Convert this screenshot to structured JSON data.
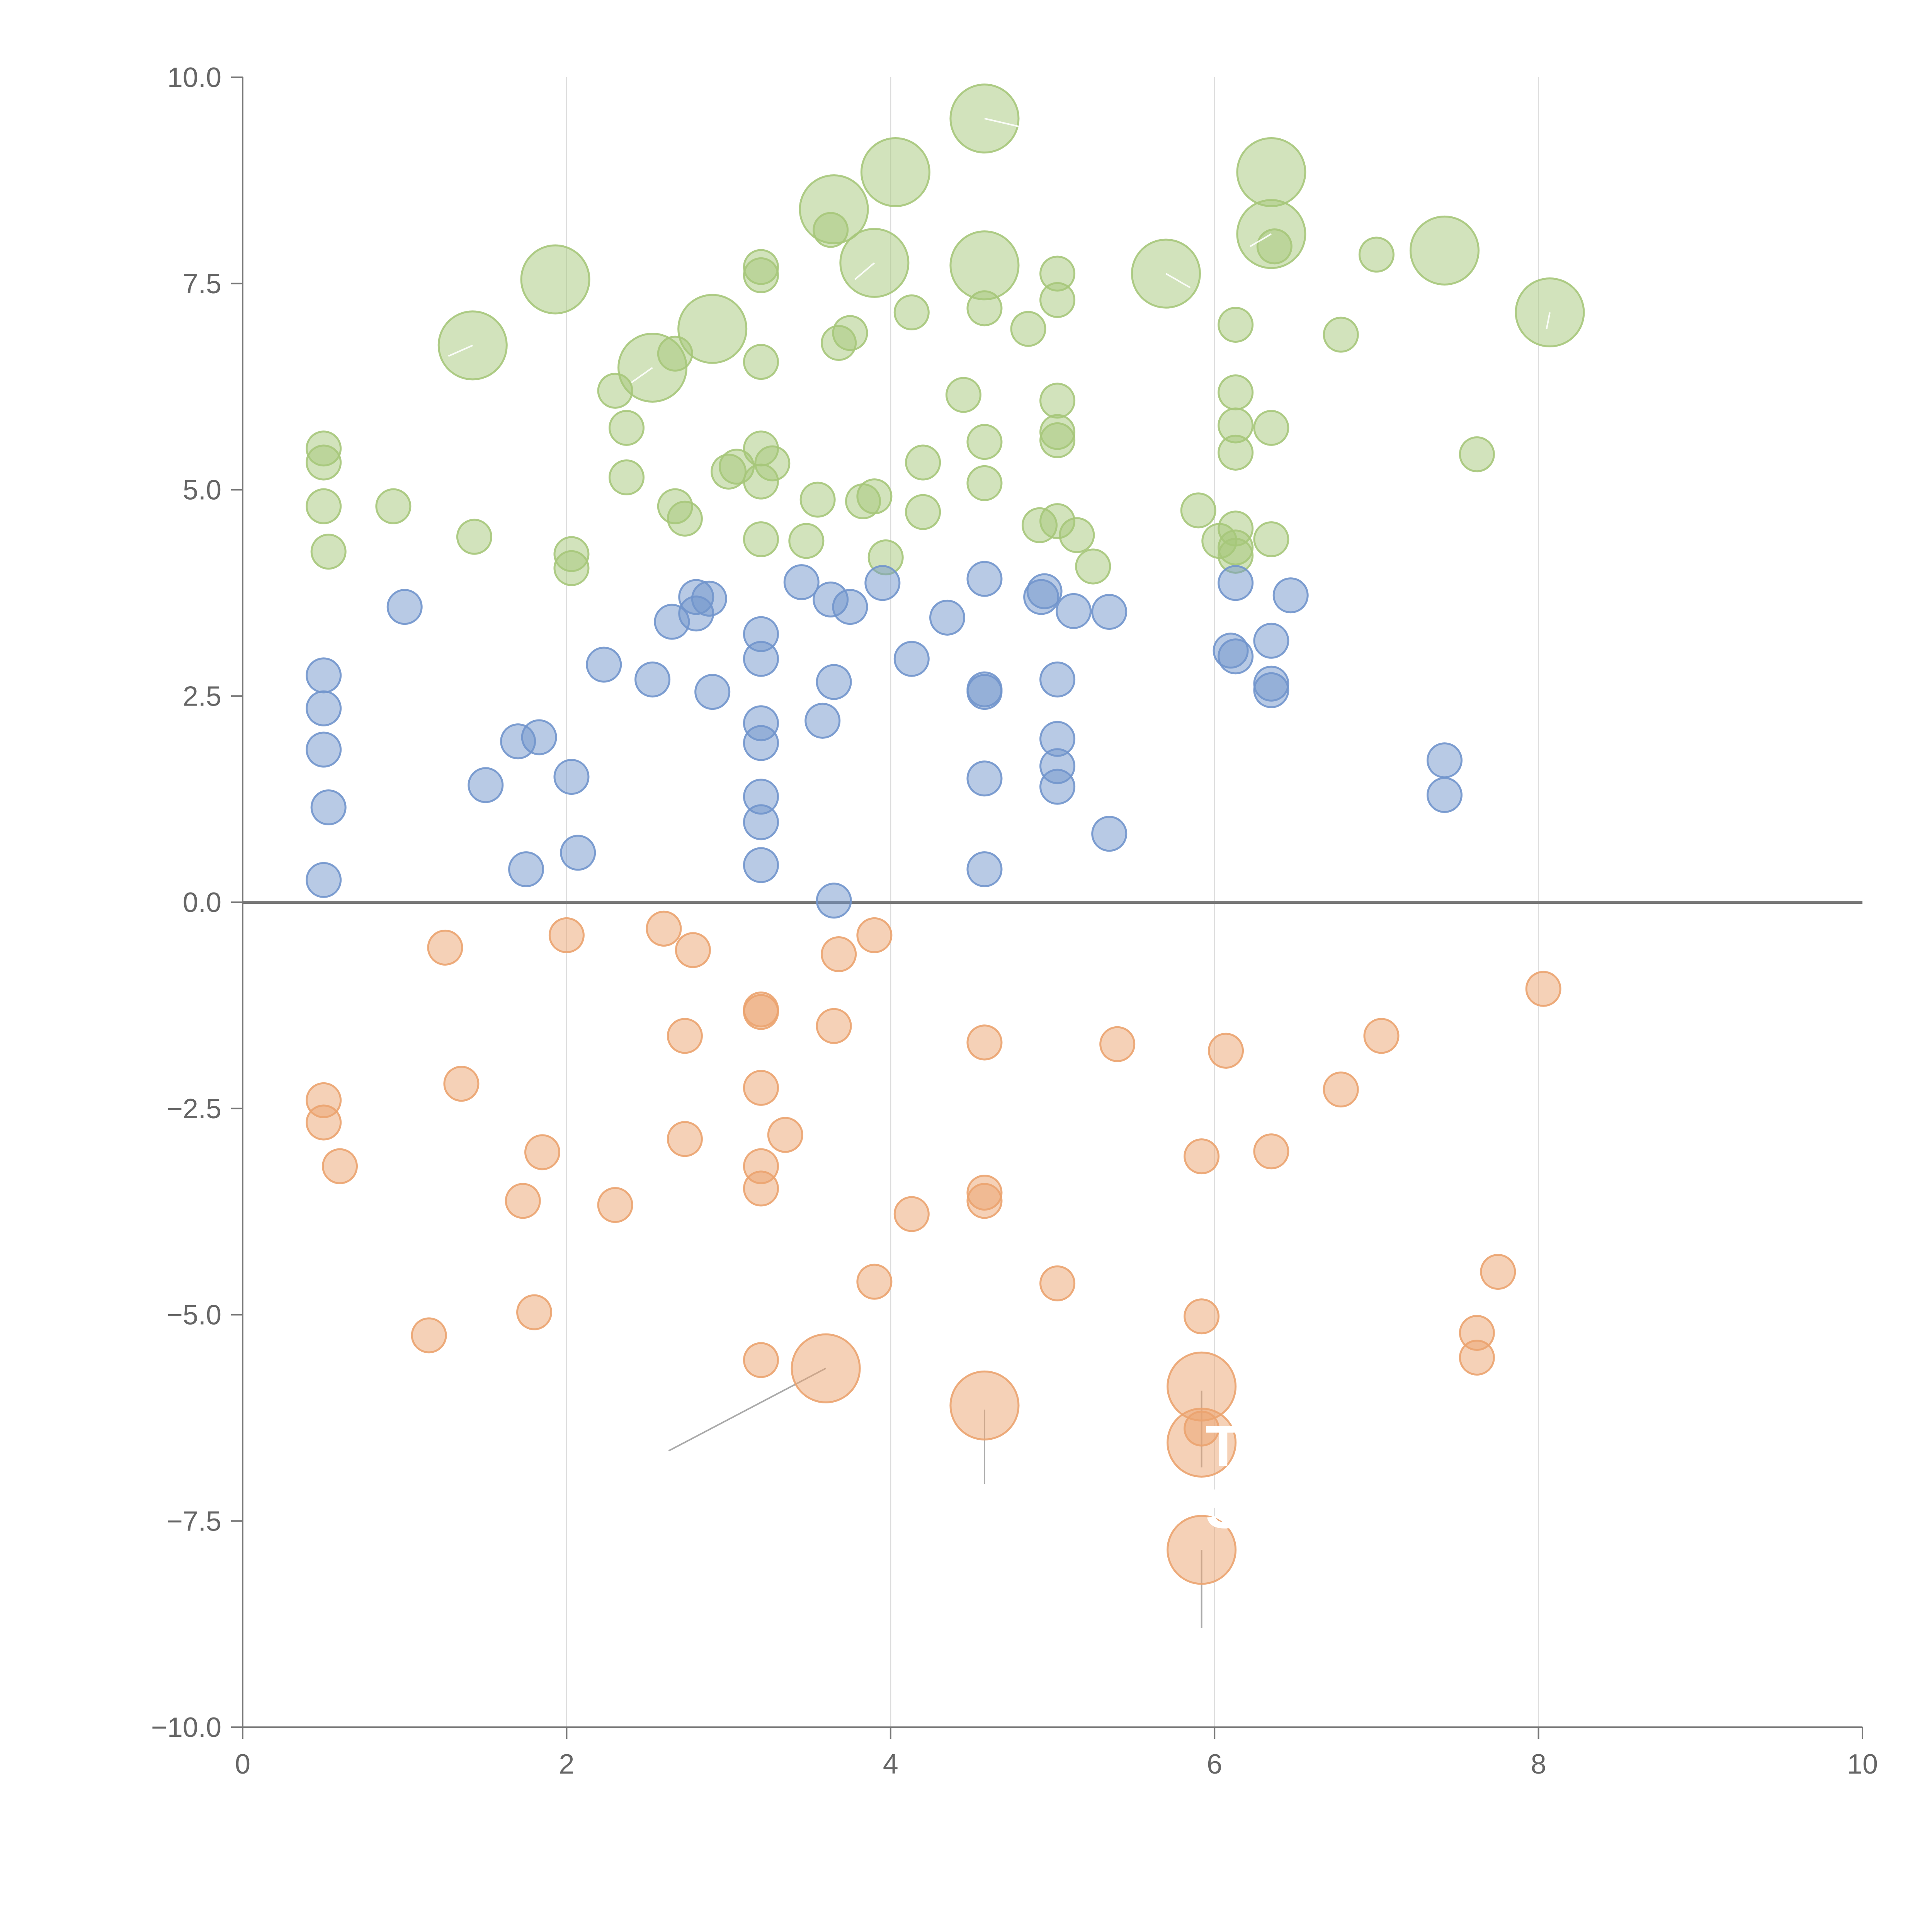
{
  "chart_data": {
    "type": "scatter",
    "title": "",
    "xlabel": "",
    "ylabel": "",
    "xlim": [
      0,
      10
    ],
    "ylim": [
      -10,
      10
    ],
    "x_ticks": [
      0,
      2,
      4,
      6,
      8,
      10
    ],
    "x_tick_labels": [
      "0",
      "2",
      "4",
      "6",
      "8",
      "10"
    ],
    "y_ticks": [
      10,
      7.5,
      5,
      2.5,
      0,
      -2.5,
      -5,
      -7.5,
      -10
    ],
    "y_tick_labels": [
      "10.0",
      "7.5",
      "5.0",
      "2.5",
      "0.0",
      "−2.5",
      "−5.0",
      "−7.5",
      "−10.0"
    ],
    "vertical_grid_at": [
      2,
      4,
      6,
      8
    ],
    "reference_line_y": 0,
    "colors": {
      "green": "#a6c77a",
      "blue": "#7195cc",
      "orange": "#eba36f",
      "axis": "#777777",
      "grid": "#dddddd",
      "tick_text": "#666666"
    },
    "series": [
      {
        "name": "green",
        "color": "#a6c77a",
        "small_radius": 0.105,
        "points": [
          [
            4.58,
            9.5,
            2
          ],
          [
            4.03,
            8.85,
            2
          ],
          [
            6.35,
            8.85,
            2
          ],
          [
            3.65,
            8.4,
            2
          ],
          [
            6.35,
            8.1,
            2
          ],
          [
            6.37,
            7.95,
            1
          ],
          [
            3.63,
            8.15,
            1
          ],
          [
            1.93,
            7.55,
            2
          ],
          [
            3.9,
            7.75,
            2
          ],
          [
            4.58,
            7.72,
            2
          ],
          [
            5.7,
            7.62,
            2
          ],
          [
            7.42,
            7.9,
            2
          ],
          [
            8.07,
            7.15,
            2
          ],
          [
            3.2,
            7.7,
            1
          ],
          [
            3.2,
            7.6,
            1
          ],
          [
            5.03,
            7.62,
            1
          ],
          [
            7.0,
            7.85,
            1
          ],
          [
            4.13,
            7.15,
            1
          ],
          [
            4.58,
            7.2,
            1
          ],
          [
            5.03,
            7.3,
            1
          ],
          [
            1.42,
            6.75,
            2
          ],
          [
            2.9,
            6.95,
            2
          ],
          [
            2.53,
            6.48,
            2
          ],
          [
            4.85,
            6.95,
            1
          ],
          [
            3.75,
            6.9,
            1
          ],
          [
            3.68,
            6.78,
            1
          ],
          [
            6.13,
            7.0,
            1
          ],
          [
            6.78,
            6.88,
            1
          ],
          [
            2.67,
            6.65,
            1
          ],
          [
            3.2,
            6.55,
            1
          ],
          [
            2.3,
            6.2,
            1
          ],
          [
            2.37,
            5.75,
            1
          ],
          [
            4.45,
            6.15,
            1
          ],
          [
            5.03,
            6.08,
            1
          ],
          [
            6.13,
            6.18,
            1
          ],
          [
            0.5,
            5.5,
            1
          ],
          [
            0.5,
            5.33,
            1
          ],
          [
            3.2,
            5.5,
            1
          ],
          [
            3.27,
            5.32,
            1
          ],
          [
            3.05,
            5.28,
            1
          ],
          [
            3.0,
            5.22,
            1
          ],
          [
            3.2,
            5.1,
            1
          ],
          [
            2.37,
            5.15,
            1
          ],
          [
            4.58,
            5.58,
            1
          ],
          [
            5.03,
            5.7,
            1
          ],
          [
            5.03,
            5.6,
            1
          ],
          [
            4.2,
            5.33,
            1
          ],
          [
            6.13,
            5.78,
            1
          ],
          [
            6.35,
            5.75,
            1
          ],
          [
            6.13,
            5.45,
            1
          ],
          [
            7.62,
            5.43,
            1
          ],
          [
            0.5,
            4.8,
            1
          ],
          [
            0.93,
            4.8,
            1
          ],
          [
            2.67,
            4.8,
            1
          ],
          [
            2.73,
            4.65,
            1
          ],
          [
            3.55,
            4.88,
            1
          ],
          [
            3.83,
            4.86,
            1
          ],
          [
            3.9,
            4.92,
            1
          ],
          [
            4.58,
            5.08,
            1
          ],
          [
            4.2,
            4.73,
            1
          ],
          [
            5.9,
            4.75,
            1
          ],
          [
            5.03,
            4.62,
            1
          ],
          [
            4.92,
            4.57,
            1
          ],
          [
            5.15,
            4.45,
            1
          ],
          [
            0.53,
            4.25,
            1
          ],
          [
            1.43,
            4.43,
            1
          ],
          [
            2.03,
            4.22,
            1
          ],
          [
            2.03,
            4.05,
            1
          ],
          [
            3.2,
            4.4,
            1
          ],
          [
            3.48,
            4.38,
            1
          ],
          [
            3.97,
            4.18,
            1
          ],
          [
            5.25,
            4.07,
            1
          ],
          [
            6.03,
            4.38,
            1
          ],
          [
            6.13,
            4.53,
            1
          ],
          [
            6.13,
            4.3,
            1
          ],
          [
            6.13,
            4.2,
            1
          ],
          [
            6.35,
            4.4,
            1
          ]
        ]
      },
      {
        "name": "blue",
        "color": "#7195cc",
        "small_radius": 0.105,
        "points": [
          [
            1.0,
            3.58,
            1
          ],
          [
            3.45,
            3.88,
            1
          ],
          [
            3.95,
            3.87,
            1
          ],
          [
            4.58,
            3.92,
            1
          ],
          [
            6.13,
            3.87,
            1
          ],
          [
            4.95,
            3.77,
            1
          ],
          [
            4.93,
            3.7,
            1
          ],
          [
            2.8,
            3.7,
            1
          ],
          [
            2.88,
            3.68,
            1
          ],
          [
            2.8,
            3.5,
            1
          ],
          [
            2.65,
            3.4,
            1
          ],
          [
            3.63,
            3.67,
            1
          ],
          [
            3.75,
            3.58,
            1
          ],
          [
            4.35,
            3.45,
            1
          ],
          [
            5.13,
            3.53,
            1
          ],
          [
            5.35,
            3.52,
            1
          ],
          [
            6.47,
            3.72,
            1
          ],
          [
            6.35,
            3.17,
            1
          ],
          [
            3.2,
            3.25,
            1
          ],
          [
            3.2,
            2.95,
            1
          ],
          [
            4.13,
            2.95,
            1
          ],
          [
            6.1,
            3.05,
            1
          ],
          [
            6.13,
            2.98,
            1
          ],
          [
            0.5,
            2.75,
            1
          ],
          [
            2.23,
            2.88,
            1
          ],
          [
            2.53,
            2.7,
            1
          ],
          [
            2.9,
            2.55,
            1
          ],
          [
            3.65,
            2.67,
            1
          ],
          [
            4.58,
            2.58,
            1
          ],
          [
            4.58,
            2.55,
            1
          ],
          [
            5.03,
            2.7,
            1
          ],
          [
            6.35,
            2.65,
            1
          ],
          [
            6.35,
            2.57,
            1
          ],
          [
            0.5,
            2.35,
            1
          ],
          [
            3.2,
            2.17,
            1
          ],
          [
            3.58,
            2.2,
            1
          ],
          [
            1.7,
            1.95,
            1
          ],
          [
            1.83,
            2.0,
            1
          ],
          [
            3.2,
            1.93,
            1
          ],
          [
            5.03,
            1.98,
            1
          ],
          [
            0.5,
            1.85,
            1
          ],
          [
            7.42,
            1.72,
            1
          ],
          [
            5.03,
            1.65,
            1
          ],
          [
            2.03,
            1.52,
            1
          ],
          [
            1.5,
            1.42,
            1
          ],
          [
            4.58,
            1.5,
            1
          ],
          [
            5.03,
            1.4,
            1
          ],
          [
            3.2,
            1.28,
            1
          ],
          [
            7.42,
            1.3,
            1
          ],
          [
            0.53,
            1.15,
            1
          ],
          [
            3.2,
            0.97,
            1
          ],
          [
            5.35,
            0.83,
            1
          ],
          [
            2.07,
            0.6,
            1
          ],
          [
            3.2,
            0.45,
            1
          ],
          [
            1.75,
            0.4,
            1
          ],
          [
            4.58,
            0.4,
            1
          ],
          [
            0.5,
            0.27,
            1
          ],
          [
            3.65,
            0.02,
            1
          ]
        ]
      },
      {
        "name": "orange",
        "color": "#eba36f",
        "small_radius": 0.105,
        "points": [
          [
            1.25,
            -0.55,
            1
          ],
          [
            2.0,
            -0.4,
            1
          ],
          [
            2.6,
            -0.32,
            1
          ],
          [
            2.78,
            -0.58,
            1
          ],
          [
            3.68,
            -0.63,
            1
          ],
          [
            3.9,
            -0.4,
            1
          ],
          [
            8.03,
            -1.05,
            1
          ],
          [
            3.2,
            -1.3,
            1
          ],
          [
            3.2,
            -1.33,
            1
          ],
          [
            2.73,
            -1.62,
            1
          ],
          [
            3.65,
            -1.5,
            1
          ],
          [
            4.58,
            -1.7,
            1
          ],
          [
            5.4,
            -1.72,
            1
          ],
          [
            6.07,
            -1.8,
            1
          ],
          [
            7.03,
            -1.62,
            1
          ],
          [
            0.5,
            -2.4,
            1
          ],
          [
            0.5,
            -2.67,
            1
          ],
          [
            1.35,
            -2.2,
            1
          ],
          [
            3.2,
            -2.25,
            1
          ],
          [
            6.78,
            -2.27,
            1
          ],
          [
            0.6,
            -3.2,
            1
          ],
          [
            1.85,
            -3.03,
            1
          ],
          [
            2.73,
            -2.87,
            1
          ],
          [
            3.35,
            -2.82,
            1
          ],
          [
            3.2,
            -3.2,
            1
          ],
          [
            3.2,
            -3.47,
            1
          ],
          [
            5.92,
            -3.08,
            1
          ],
          [
            6.35,
            -3.02,
            1
          ],
          [
            1.73,
            -3.62,
            1
          ],
          [
            2.3,
            -3.67,
            1
          ],
          [
            4.58,
            -3.52,
            1
          ],
          [
            4.58,
            -3.62,
            1
          ],
          [
            4.13,
            -3.78,
            1
          ],
          [
            7.75,
            -4.48,
            1
          ],
          [
            3.9,
            -4.6,
            1
          ],
          [
            5.03,
            -4.62,
            1
          ],
          [
            1.8,
            -4.97,
            1
          ],
          [
            5.92,
            -5.02,
            1
          ],
          [
            1.15,
            -5.25,
            1
          ],
          [
            7.62,
            -5.22,
            1
          ],
          [
            7.62,
            -5.52,
            1
          ],
          [
            3.2,
            -5.55,
            1
          ],
          [
            3.6,
            -5.65,
            2
          ],
          [
            4.58,
            -6.1,
            2
          ],
          [
            5.92,
            -5.87,
            2
          ],
          [
            5.92,
            -6.55,
            2
          ],
          [
            5.92,
            -6.38,
            1
          ],
          [
            5.92,
            -7.85,
            2
          ]
        ]
      }
    ],
    "leader_lines": [
      [
        3.6,
        -5.65,
        2.63,
        -6.65
      ],
      [
        4.58,
        -6.15,
        4.58,
        -7.05
      ],
      [
        5.92,
        -5.92,
        5.92,
        -6.85
      ],
      [
        5.92,
        -7.85,
        5.92,
        -8.8
      ]
    ],
    "light_leaders": [
      [
        4.58,
        9.5,
        4.8,
        9.4
      ],
      [
        1.42,
        6.75,
        1.27,
        6.62
      ],
      [
        2.53,
        6.48,
        2.4,
        6.3
      ],
      [
        6.35,
        8.1,
        6.22,
        7.95
      ],
      [
        5.7,
        7.62,
        5.85,
        7.45
      ],
      [
        3.9,
        7.75,
        3.78,
        7.55
      ],
      [
        8.07,
        7.15,
        8.05,
        6.95
      ]
    ],
    "annotations": [
      {
        "text": "T",
        "x": 5.92,
        "y": -6.6
      },
      {
        "text": "S",
        "x": 5.92,
        "y": -7.35
      }
    ]
  }
}
